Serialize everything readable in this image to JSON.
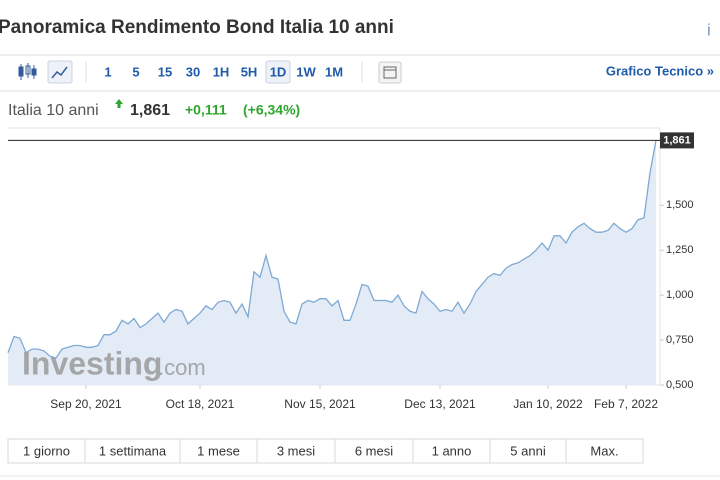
{
  "header": {
    "title": "Panoramica Rendimento Bond Italia 10 anni",
    "info": "i"
  },
  "toolbar": {
    "periods": [
      "1",
      "5",
      "15",
      "30",
      "1H",
      "5H",
      "1D",
      "1W",
      "1M"
    ],
    "active_period": 6,
    "link": "Grafico Tecnico »"
  },
  "quote": {
    "name": "Italia 10 anni",
    "price": "1,861",
    "change": "+0,111",
    "change_pct": "(+6,34%)"
  },
  "watermark": {
    "brand": "Investing",
    "suffix": ".com"
  },
  "chart_data": {
    "type": "line",
    "categories": [
      null,
      null,
      null,
      null,
      null,
      null,
      null,
      null,
      null,
      null,
      null,
      null,
      null,
      "Sep 20, 2021",
      null,
      null,
      null,
      null,
      null,
      null,
      null,
      null,
      null,
      null,
      null,
      null,
      null,
      null,
      null,
      null,
      null,
      null,
      "Oct 18, 2021",
      null,
      null,
      null,
      null,
      null,
      null,
      null,
      null,
      null,
      null,
      null,
      null,
      null,
      null,
      null,
      null,
      null,
      null,
      null,
      "Nov 15, 2021",
      null,
      null,
      null,
      null,
      null,
      null,
      null,
      null,
      null,
      null,
      null,
      null,
      null,
      null,
      null,
      null,
      null,
      null,
      null,
      "Dec 13, 2021",
      null,
      null,
      null,
      null,
      null,
      null,
      null,
      null,
      null,
      null,
      null,
      null,
      null,
      null,
      null,
      null,
      null,
      "Jan 10, 2022",
      null,
      null,
      null,
      null,
      null,
      null,
      null,
      null,
      null,
      null,
      null,
      null,
      "Feb 7, 2022",
      null,
      null,
      null,
      null,
      null
    ],
    "values": [
      0.68,
      0.77,
      0.76,
      0.68,
      0.7,
      0.7,
      0.69,
      0.66,
      0.65,
      0.7,
      0.71,
      0.72,
      0.72,
      0.71,
      0.71,
      0.72,
      0.78,
      0.78,
      0.8,
      0.86,
      0.84,
      0.87,
      0.82,
      0.84,
      0.87,
      0.9,
      0.85,
      0.9,
      0.92,
      0.91,
      0.84,
      0.87,
      0.9,
      0.94,
      0.92,
      0.96,
      0.97,
      0.96,
      0.9,
      0.95,
      0.88,
      1.13,
      1.1,
      1.22,
      1.1,
      1.09,
      0.91,
      0.85,
      0.84,
      0.95,
      0.97,
      0.96,
      0.98,
      0.98,
      0.94,
      0.97,
      0.86,
      0.86,
      0.95,
      1.06,
      1.05,
      0.97,
      0.97,
      0.97,
      0.96,
      1.0,
      0.94,
      0.91,
      0.9,
      1.02,
      0.98,
      0.95,
      0.91,
      0.92,
      0.91,
      0.96,
      0.9,
      0.95,
      1.02,
      1.06,
      1.1,
      1.12,
      1.11,
      1.15,
      1.17,
      1.18,
      1.2,
      1.22,
      1.25,
      1.29,
      1.25,
      1.33,
      1.33,
      1.29,
      1.35,
      1.38,
      1.4,
      1.37,
      1.35,
      1.35,
      1.36,
      1.4,
      1.37,
      1.35,
      1.37,
      1.42,
      1.43,
      1.68,
      1.861
    ],
    "color": "#7fa9d4",
    "ylim": [
      0.5,
      1.93
    ],
    "yticks": [
      {
        "value": 0.5,
        "label": "0,500"
      },
      {
        "value": 0.75,
        "label": "0,750"
      },
      {
        "value": 1.0,
        "label": "1,000"
      },
      {
        "value": 1.25,
        "label": "1,250"
      },
      {
        "value": 1.5,
        "label": "1,500"
      }
    ],
    "reference_line": {
      "value": 1.861,
      "label": "1,861"
    },
    "grid": false
  },
  "ranges": [
    "1 giorno",
    "1 settimana",
    "1 mese",
    "3 mesi",
    "6 mesi",
    "1 anno",
    "5 anni",
    "Max."
  ]
}
